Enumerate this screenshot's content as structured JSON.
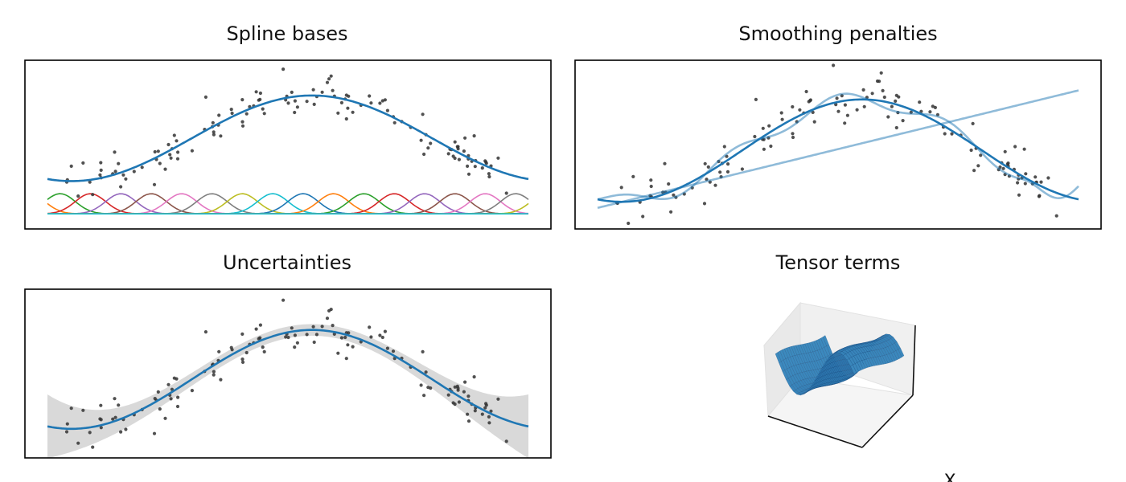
{
  "chart_data": [
    {
      "type": "line",
      "title": "Spline bases",
      "xlabel": "",
      "ylabel": "",
      "ticks": "none",
      "xlim": [
        0,
        1
      ],
      "ylim": [
        -1.9,
        1.45
      ],
      "fit": {
        "type": "sine",
        "offset": -0.1,
        "amplitude": 0.85,
        "start_x": 0.3,
        "end_x": 1.1
      },
      "basis": {
        "count": 20,
        "shape": "gaussian",
        "center_start": -0.1,
        "center_end": 1.1,
        "level": -1.6,
        "height": 0.4,
        "colors": [
          "#1f77b4",
          "#ff7f0e",
          "#2ca02c",
          "#d62728",
          "#9467bd",
          "#8c564b",
          "#e377c2",
          "#7f7f7f",
          "#bcbd22",
          "#17becf"
        ]
      }
    },
    {
      "type": "line",
      "title": "Smoothing penalties",
      "xlabel": "",
      "ylabel": "",
      "ticks": "none",
      "xlim": [
        0,
        1
      ],
      "ylim": [
        -1.4,
        1.4
      ],
      "series_count": 3,
      "fits": [
        {
          "style": "smooth",
          "opacity": 1.0
        },
        {
          "style": "over-smoothed",
          "opacity": 0.5
        },
        {
          "style": "under-smoothed",
          "opacity": 0.5
        }
      ]
    },
    {
      "type": "area",
      "title": "Uncertainties",
      "xlabel": "",
      "ylabel": "",
      "ticks": "none",
      "xlim": [
        0,
        1
      ],
      "ylim": [
        -1.45,
        1.45
      ],
      "band_color": "#d9d9d9",
      "fit": {
        "type": "sine",
        "offset": -0.1,
        "amplitude": 0.85
      }
    },
    {
      "type": "surface",
      "title": "Tensor terms",
      "axis_label_visible": "X",
      "surface_color": "#2f7fb8"
    }
  ],
  "colors": {
    "fit": "#1f77b4",
    "points": "#333333"
  }
}
